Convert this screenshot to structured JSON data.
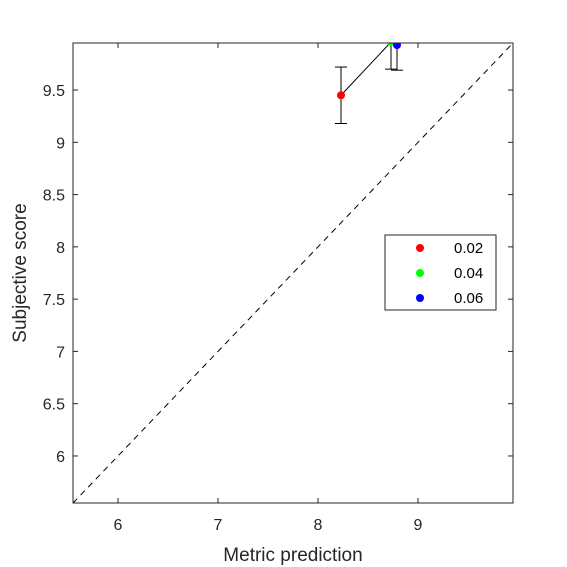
{
  "chart_data": {
    "type": "scatter",
    "xlabel": "Metric prediction",
    "ylabel": "Subjective score",
    "xlim": [
      5.55,
      9.95
    ],
    "ylim": [
      5.55,
      9.95
    ],
    "x_ticks": [
      6,
      7,
      8,
      9
    ],
    "x_tick_labels": [
      "6",
      "7",
      "8",
      "9"
    ],
    "y_ticks": [
      6,
      6.5,
      7,
      7.5,
      8,
      8.5,
      9,
      9.5
    ],
    "y_tick_labels": [
      "6",
      "6.5",
      "7",
      "7.5",
      "8",
      "8.5",
      "9",
      "9.5"
    ],
    "grid": false,
    "box": true,
    "reference_line": {
      "style": "dashed",
      "from": [
        5.55,
        5.55
      ],
      "to": [
        9.95,
        9.95
      ]
    },
    "connecting_line": true,
    "legend_position": "right-middle",
    "series": [
      {
        "name": "0.02",
        "x": 8.23,
        "y": 9.45,
        "err_low": 9.18,
        "err_high": 9.72,
        "color": "#ff0000"
      },
      {
        "name": "0.04",
        "x": 8.73,
        "y": 9.96,
        "err_low": 9.7,
        "err_high": 10.1,
        "color": "#00ff00"
      },
      {
        "name": "0.06",
        "x": 8.79,
        "y": 9.93,
        "err_low": 9.69,
        "err_high": 10.1,
        "color": "#0000ff"
      }
    ]
  }
}
